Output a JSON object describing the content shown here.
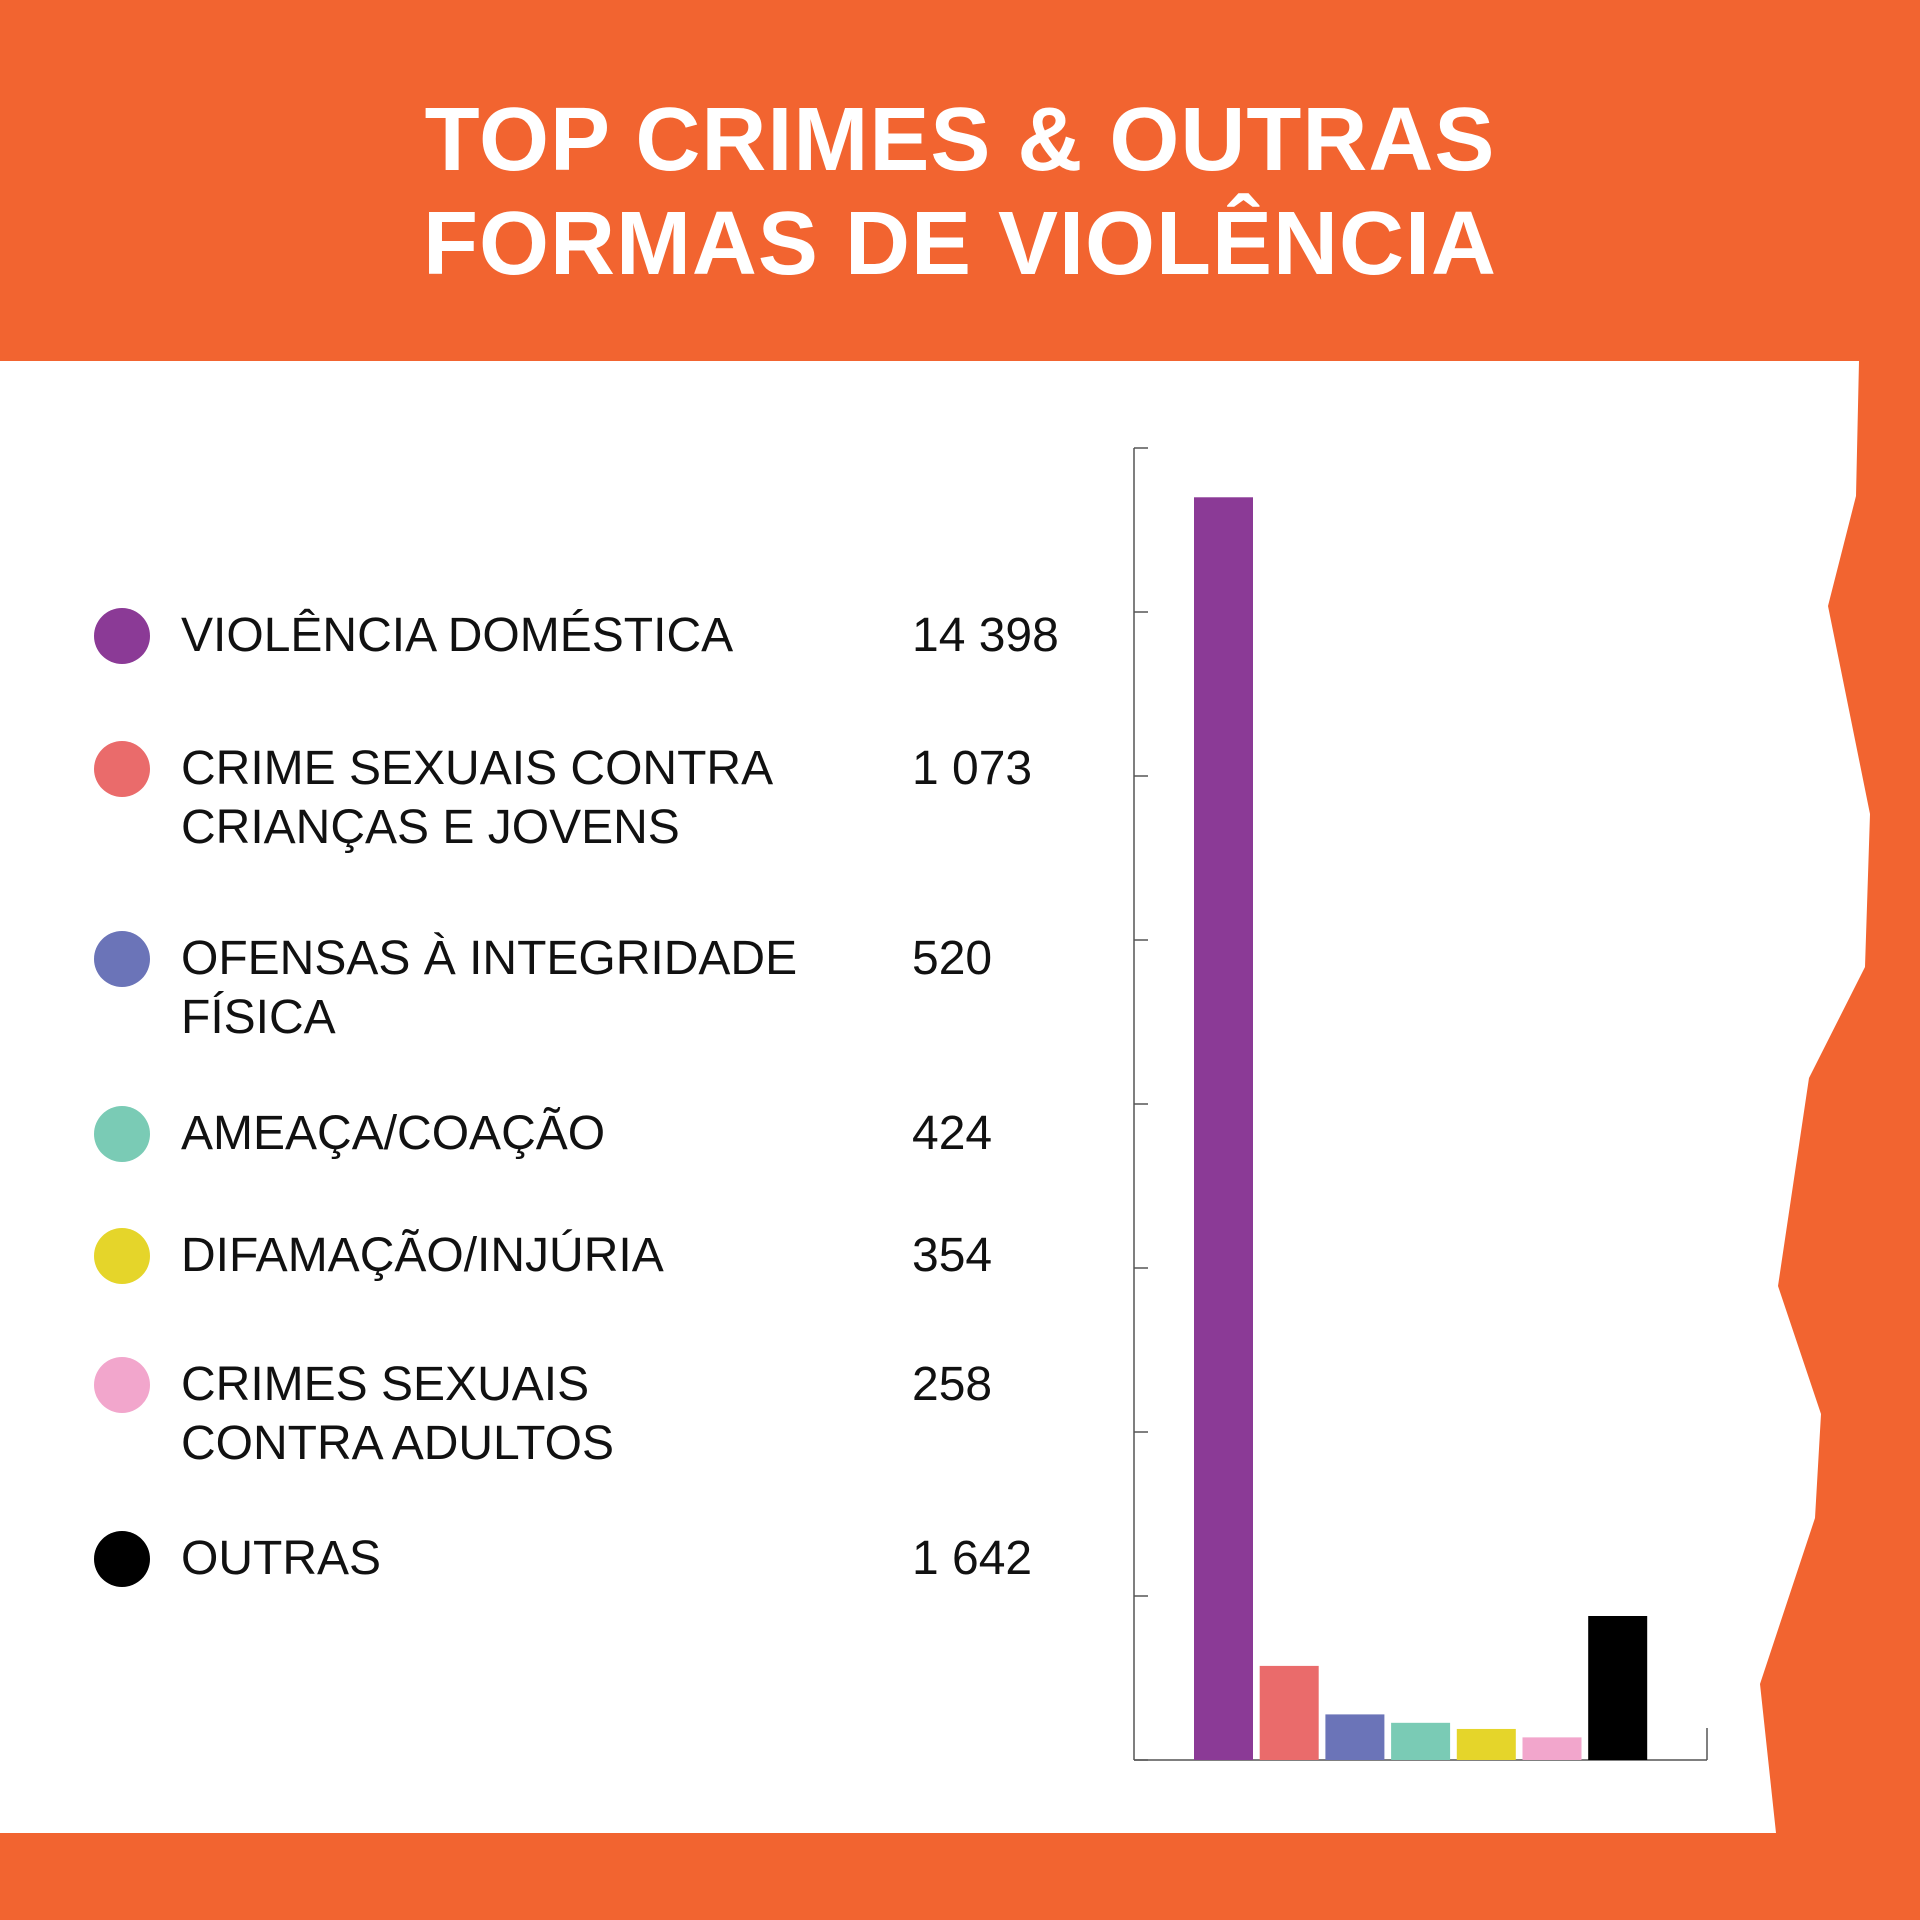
{
  "title": {
    "line1": "TOP CRIMES & OUTRAS",
    "line2": "FORMAS DE VIOLÊNCIA"
  },
  "colors": {
    "background": "#F26430",
    "panel": "#FFFFFF"
  },
  "legend": [
    {
      "line1": "VIOLÊNCIA DOMÉSTICA",
      "line2": "",
      "value": "14 398",
      "color": "#8B3A96"
    },
    {
      "line1": "CRIME SEXUAIS CONTRA",
      "line2": "CRIANÇAS E JOVENS",
      "value": "1 073",
      "color": "#EA6B6B"
    },
    {
      "line1": "OFENSAS À INTEGRIDADE",
      "line2": "FÍSICA",
      "value": "520",
      "color": "#6B74B8"
    },
    {
      "line1": "AMEAÇA/COAÇÃO",
      "line2": "",
      "value": "424",
      "color": "#7ACBB5"
    },
    {
      "line1": "DIFAMAÇÃO/INJÚRIA",
      "line2": "",
      "value": "354",
      "color": "#E5D52A"
    },
    {
      "line1": "CRIMES SEXUAIS",
      "line2": "CONTRA ADULTOS",
      "value": "258",
      "color": "#F2A6CC"
    },
    {
      "line1": "OUTRAS",
      "line2": "",
      "value": "1 642",
      "color": "#000000"
    }
  ],
  "chart_data": {
    "type": "bar",
    "title": "TOP CRIMES & OUTRAS FORMAS DE VIOLÊNCIA",
    "categories": [
      "VIOLÊNCIA DOMÉSTICA",
      "CRIME SEXUAIS CONTRA CRIANÇAS E JOVENS",
      "OFENSAS À INTEGRIDADE FÍSICA",
      "AMEAÇA/COAÇÃO",
      "DIFAMAÇÃO/INJÚRIA",
      "CRIMES SEXUAIS CONTRA ADULTOS",
      "OUTRAS"
    ],
    "values": [
      14398,
      1073,
      520,
      424,
      354,
      258,
      1642
    ],
    "colors": [
      "#8B3A96",
      "#EA6B6B",
      "#6B74B8",
      "#7ACBB5",
      "#E5D52A",
      "#F2A6CC",
      "#000000"
    ],
    "xlabel": "",
    "ylabel": "",
    "ylim": [
      0,
      14960
    ],
    "y_tick_count": 8,
    "grid": false,
    "legend": "left"
  }
}
